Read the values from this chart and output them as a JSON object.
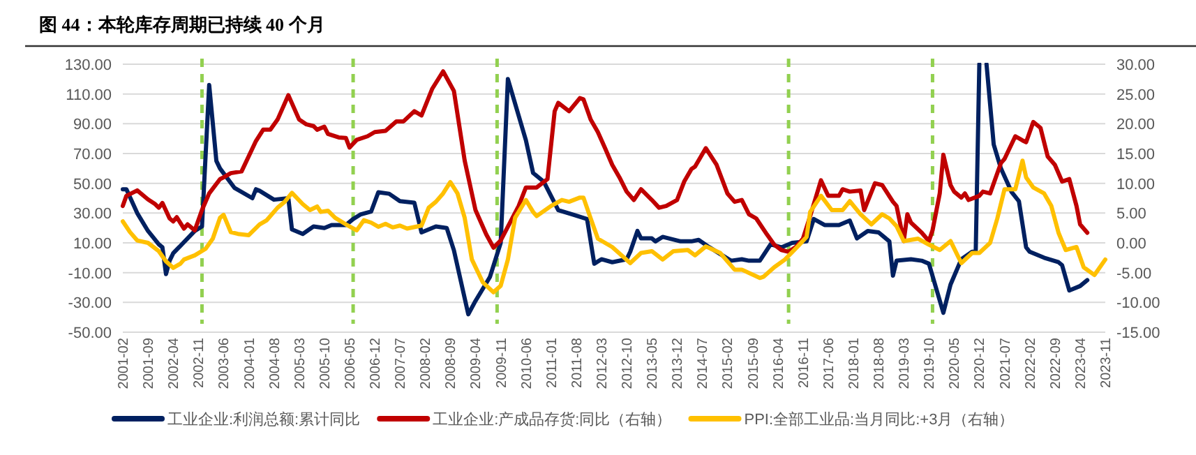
{
  "chart_data": {
    "type": "line",
    "title": "图 44：本轮库存周期已持续 40 个月",
    "xlim": [
      "2001-02",
      "2023-11"
    ],
    "xticks": [
      "2001-02",
      "2001-09",
      "2002-04",
      "2002-11",
      "2003-06",
      "2004-01",
      "2004-08",
      "2005-03",
      "2005-10",
      "2006-05",
      "2006-12",
      "2007-07",
      "2008-02",
      "2008-09",
      "2009-04",
      "2009-11",
      "2010-06",
      "2011-01",
      "2011-08",
      "2012-03",
      "2012-10",
      "2013-05",
      "2013-12",
      "2014-07",
      "2015-02",
      "2015-09",
      "2016-04",
      "2016-11",
      "2017-06",
      "2018-01",
      "2018-08",
      "2019-03",
      "2019-10",
      "2020-05",
      "2020-12",
      "2021-07",
      "2022-02",
      "2022-09",
      "2023-04",
      "2023-11"
    ],
    "ylim": [
      -50,
      130
    ],
    "yticks": [
      {
        "value": -50,
        "label": "-50.00"
      },
      {
        "value": -30,
        "label": "-30.00"
      },
      {
        "value": -10,
        "label": "-10.00"
      },
      {
        "value": 10,
        "label": "10.00"
      },
      {
        "value": 30,
        "label": "30.00"
      },
      {
        "value": 50,
        "label": "50.00"
      },
      {
        "value": 70,
        "label": "70.00"
      },
      {
        "value": 90,
        "label": "90.00"
      },
      {
        "value": 110,
        "label": "110.00"
      },
      {
        "value": 130,
        "label": "130.00"
      }
    ],
    "y2lim": [
      -15,
      30
    ],
    "y2ticks": [
      {
        "value": -15,
        "label": "-15.00"
      },
      {
        "value": -10,
        "label": "-10.00"
      },
      {
        "value": -5,
        "label": "-5.00"
      },
      {
        "value": 0,
        "label": "0.00"
      },
      {
        "value": 5,
        "label": "5.00"
      },
      {
        "value": 10,
        "label": "10.00"
      },
      {
        "value": 15,
        "label": "15.00"
      },
      {
        "value": 20,
        "label": "20.00"
      },
      {
        "value": 25,
        "label": "25.00"
      },
      {
        "value": 30,
        "label": "30.00"
      }
    ],
    "grid": "y",
    "legend": "bottom",
    "ref_lines": [
      {
        "axis": "x",
        "value": "2002-12",
        "color": "#92d050",
        "line_style": "dashed"
      },
      {
        "axis": "x",
        "value": "2006-06",
        "color": "#92d050",
        "line_style": "dashed"
      },
      {
        "axis": "x",
        "value": "2009-10",
        "color": "#92d050",
        "line_style": "dashed"
      },
      {
        "axis": "x",
        "value": "2016-07",
        "color": "#92d050",
        "line_style": "dashed"
      },
      {
        "axis": "x",
        "value": "2019-11",
        "color": "#92d050",
        "line_style": "dashed"
      }
    ],
    "series": [
      {
        "name": "工业企业:利润总额:累计同比",
        "color": "#002060",
        "x": [
          "2001-02",
          "2001-03",
          "2001-06",
          "2001-09",
          "2001-12",
          "2002-01",
          "2002-02",
          "2002-03",
          "2002-04",
          "2002-08",
          "2002-10",
          "2002-12",
          "2003-02",
          "2003-04",
          "2003-05",
          "2003-09",
          "2004-02",
          "2004-03",
          "2004-04",
          "2004-08",
          "2004-12",
          "2005-01",
          "2005-04",
          "2005-07",
          "2005-10",
          "2005-12",
          "2006-04",
          "2006-06",
          "2006-08",
          "2006-11",
          "2007-01",
          "2007-04",
          "2007-07",
          "2007-11",
          "2008-01",
          "2008-05",
          "2008-08",
          "2008-10",
          "2009-02",
          "2009-04",
          "2009-08",
          "2009-11",
          "2010-01",
          "2010-06",
          "2010-08",
          "2010-11",
          "2011-03",
          "2011-07",
          "2011-11",
          "2012-01",
          "2012-03",
          "2012-06",
          "2012-10",
          "2012-11",
          "2013-01",
          "2013-02",
          "2013-05",
          "2013-06",
          "2013-08",
          "2014-01",
          "2014-04",
          "2014-06",
          "2014-09",
          "2015-03",
          "2015-06",
          "2015-08",
          "2015-11",
          "2016-02",
          "2016-05",
          "2016-08",
          "2016-12",
          "2017-02",
          "2017-05",
          "2017-09",
          "2017-12",
          "2018-02",
          "2018-05",
          "2018-08",
          "2018-11",
          "2018-12",
          "2019-01",
          "2019-05",
          "2019-08",
          "2019-10",
          "2020-02",
          "2020-04",
          "2020-07",
          "2020-10",
          "2020-11",
          "2020-12",
          "2021-01",
          "2021-02",
          "2021-04",
          "2021-06",
          "2021-09",
          "2021-11",
          "2022-01",
          "2022-02",
          "2022-04",
          "2022-06",
          "2022-10",
          "2022-11",
          "2023-01",
          "2023-04",
          "2023-06"
        ],
        "values": [
          46,
          46,
          30,
          18,
          9,
          7,
          -11,
          -2,
          3,
          13,
          18,
          21,
          116,
          65,
          60,
          47,
          40,
          46,
          45,
          39,
          40,
          19,
          16,
          21,
          20,
          22,
          22,
          26,
          29,
          31,
          44,
          43,
          38,
          37,
          17,
          21,
          20,
          5,
          -38,
          -29,
          -13,
          10,
          120,
          79,
          57,
          51,
          32,
          29,
          26,
          -4,
          -1,
          -3,
          -1,
          4,
          18,
          13,
          13,
          11,
          14,
          11,
          11,
          12,
          7,
          -2,
          -1,
          -2,
          -2,
          9,
          7,
          10,
          11,
          26,
          22,
          22,
          25,
          13,
          18,
          17,
          11,
          -12,
          -2,
          -1,
          -2,
          -4,
          -37,
          -18,
          -1,
          4,
          4,
          130,
          null,
          130,
          76,
          60,
          44,
          38,
          7,
          4,
          2,
          0,
          -3,
          -5,
          -22,
          -19,
          -15
        ]
      },
      {
        "name": "工业企业:产成品存货:同比（右轴）",
        "color": "#c00000",
        "axis": "y2",
        "x": [
          "2001-02",
          "2001-03",
          "2001-06",
          "2001-09",
          "2001-11",
          "2001-12",
          "2002-01",
          "2002-03",
          "2002-04",
          "2002-05",
          "2002-07",
          "2002-08",
          "2002-10",
          "2002-12",
          "2003-02",
          "2003-05",
          "2003-06",
          "2003-08",
          "2003-11",
          "2004-03",
          "2004-05",
          "2004-07",
          "2004-09",
          "2004-12",
          "2005-03",
          "2005-05",
          "2005-07",
          "2005-08",
          "2005-10",
          "2005-11",
          "2006-02",
          "2006-04",
          "2006-05",
          "2006-07",
          "2006-10",
          "2006-12",
          "2007-03",
          "2007-06",
          "2007-08",
          "2007-11",
          "2008-01",
          "2008-04",
          "2008-07",
          "2008-10",
          "2009-01",
          "2009-04",
          "2009-07",
          "2009-09",
          "2009-11",
          "2010-04",
          "2010-06",
          "2010-09",
          "2010-12",
          "2011-02",
          "2011-03",
          "2011-06",
          "2011-09",
          "2011-10",
          "2011-12",
          "2012-02",
          "2012-04",
          "2012-06",
          "2012-08",
          "2012-10",
          "2012-12",
          "2013-02",
          "2013-05",
          "2013-07",
          "2013-09",
          "2013-12",
          "2014-02",
          "2014-04",
          "2014-05",
          "2014-08",
          "2014-11",
          "2015-02",
          "2015-04",
          "2015-06",
          "2015-08",
          "2015-10",
          "2016-01",
          "2016-03",
          "2016-05",
          "2016-07",
          "2016-09",
          "2016-11",
          "2017-01",
          "2017-04",
          "2017-06",
          "2017-09",
          "2017-10",
          "2017-12",
          "2018-03",
          "2018-04",
          "2018-07",
          "2018-09",
          "2018-12",
          "2019-01",
          "2019-03",
          "2019-04",
          "2019-05",
          "2019-08",
          "2019-10",
          "2019-11",
          "2020-01",
          "2020-02",
          "2020-04",
          "2020-05",
          "2020-07",
          "2020-08",
          "2020-09",
          "2020-12",
          "2021-01",
          "2021-03",
          "2021-06",
          "2021-07",
          "2021-10",
          "2021-12",
          "2022-01",
          "2022-03",
          "2022-05",
          "2022-07",
          "2022-09",
          "2022-11",
          "2023-01",
          "2023-03",
          "2023-04",
          "2023-06"
        ],
        "values": [
          6.2,
          7.9,
          8.8,
          7.3,
          6.5,
          5.9,
          6.7,
          4.1,
          3.6,
          4.3,
          2.4,
          3.1,
          2.1,
          5.5,
          8.3,
          10.7,
          11,
          11.7,
          12,
          17.1,
          19,
          19,
          20.7,
          24.8,
          20.7,
          19.9,
          19.6,
          19,
          19.5,
          18.3,
          17.7,
          17.6,
          16,
          17.3,
          17.9,
          18.6,
          18.8,
          20.4,
          20.4,
          22.1,
          21.4,
          25.9,
          28.8,
          25.5,
          13.8,
          5.5,
          1.4,
          -0.8,
          0.4,
          6.2,
          9.3,
          9.3,
          10.7,
          22.1,
          23.5,
          22.1,
          24.3,
          24.1,
          20.7,
          18.6,
          15.9,
          13.1,
          11,
          8.6,
          7.2,
          9,
          7.2,
          5.9,
          6.2,
          7.2,
          10.3,
          12.4,
          12.8,
          15.9,
          13.1,
          8.3,
          6.9,
          7.2,
          4.8,
          4.1,
          1.4,
          -0.3,
          -1.2,
          -1.5,
          -0.7,
          0.7,
          4.5,
          10.5,
          7.9,
          7.9,
          9,
          8.6,
          8.8,
          5.5,
          10,
          9.7,
          6.9,
          6.2,
          0.3,
          4.8,
          3.4,
          1.7,
          0.3,
          2.1,
          8.3,
          14.8,
          9.7,
          8.6,
          7.6,
          8.3,
          7.2,
          7.9,
          8.6,
          8.3,
          13.4,
          14.1,
          17.9,
          17.2,
          16.9,
          20.3,
          19.3,
          14.5,
          13.1,
          10.3,
          10.7,
          6.2,
          3.1,
          1.7
        ]
      },
      {
        "name": "PPI:全部工业品:当月同比:+3月（右轴）",
        "color": "#ffc000",
        "axis": "y2",
        "x": [
          "2001-02",
          "2001-04",
          "2001-06",
          "2001-09",
          "2001-12",
          "2002-02",
          "2002-04",
          "2002-06",
          "2002-07",
          "2002-10",
          "2003-01",
          "2003-03",
          "2003-05",
          "2003-06",
          "2003-08",
          "2003-10",
          "2004-01",
          "2004-04",
          "2004-06",
          "2004-09",
          "2004-11",
          "2005-01",
          "2005-04",
          "2005-06",
          "2005-08",
          "2005-09",
          "2005-11",
          "2006-01",
          "2006-04",
          "2006-07",
          "2006-09",
          "2006-11",
          "2007-01",
          "2007-03",
          "2007-05",
          "2007-07",
          "2007-09",
          "2008-01",
          "2008-03",
          "2008-05",
          "2008-07",
          "2008-09",
          "2008-11",
          "2009-01",
          "2009-03",
          "2009-06",
          "2009-09",
          "2009-11",
          "2010-01",
          "2010-03",
          "2010-06",
          "2010-08",
          "2010-09",
          "2011-01",
          "2011-04",
          "2011-06",
          "2011-09",
          "2011-10",
          "2011-12",
          "2012-02",
          "2012-06",
          "2012-11",
          "2013-02",
          "2013-05",
          "2013-08",
          "2013-11",
          "2014-03",
          "2014-05",
          "2014-08",
          "2014-12",
          "2015-04",
          "2015-06",
          "2015-11",
          "2015-12",
          "2016-03",
          "2016-06",
          "2016-10",
          "2016-12",
          "2017-01",
          "2017-04",
          "2017-07",
          "2017-10",
          "2017-12",
          "2018-03",
          "2018-06",
          "2018-09",
          "2018-11",
          "2019-01",
          "2019-03",
          "2019-07",
          "2019-10",
          "2020-01",
          "2020-04",
          "2020-07",
          "2020-10",
          "2020-12",
          "2021-03",
          "2021-05",
          "2021-07",
          "2021-10",
          "2021-12",
          "2022-01",
          "2022-03",
          "2022-06",
          "2022-08",
          "2022-10",
          "2022-12",
          "2023-03",
          "2023-05",
          "2023-08",
          "2023-11"
        ],
        "values": [
          3.6,
          1.8,
          0.4,
          0,
          -1.4,
          -3.1,
          -4.2,
          -3.5,
          -2.8,
          -2.1,
          -1,
          0.7,
          4.2,
          4.7,
          1.8,
          1.5,
          1.3,
          3.1,
          3.8,
          5.9,
          6.9,
          8.4,
          6.5,
          5.5,
          6.1,
          5.2,
          5.4,
          4.2,
          3.1,
          2.1,
          3.8,
          3.4,
          2.7,
          3.2,
          2.6,
          2.9,
          2.4,
          2.9,
          5.9,
          6.9,
          8.3,
          10.2,
          8.3,
          4.2,
          -2.8,
          -6.6,
          -8.3,
          -7.2,
          -2.8,
          4.2,
          7.2,
          5.2,
          4.5,
          6.2,
          7.2,
          6.9,
          7.6,
          7.6,
          4.1,
          0.7,
          -0.7,
          -3.4,
          -1.7,
          -1.4,
          -2.8,
          -1.4,
          -1.2,
          -2.1,
          -0.6,
          -1.7,
          -4.5,
          -4.5,
          -5.9,
          -5.7,
          -4.1,
          -2.8,
          -0.3,
          1,
          5.2,
          7.9,
          5.5,
          5.5,
          7,
          4.8,
          3.1,
          4.8,
          4.1,
          2.8,
          0.3,
          0.7,
          -0.3,
          -1.2,
          0.3,
          -3.4,
          -1.7,
          -1.7,
          0,
          4.1,
          9,
          9,
          13.8,
          11,
          9.3,
          8.3,
          6.2,
          1.7,
          -1.2,
          -0.7,
          -4.1,
          -5.4,
          -2.8
        ]
      }
    ]
  }
}
